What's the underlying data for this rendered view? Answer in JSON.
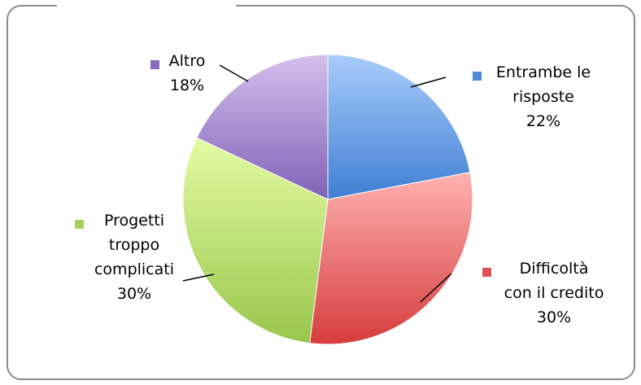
{
  "chart_data": {
    "type": "pie",
    "title": "",
    "slices": [
      {
        "lines": [
          "Entrambe le",
          "risposte"
        ],
        "value": 22,
        "value_label": "22%",
        "color_light": "#a9cdfb",
        "color_dark": "#3f7ed2",
        "marker": "#4f86d6"
      },
      {
        "lines": [
          "Difficoltà",
          "con il credito"
        ],
        "value": 30,
        "value_label": "30%",
        "color_light": "#ffb2b2",
        "color_dark": "#d63c3c",
        "marker": "#e05252"
      },
      {
        "lines": [
          "Progetti",
          "troppo",
          "complicati"
        ],
        "value": 30,
        "value_label": "30%",
        "color_light": "#e4fca4",
        "color_dark": "#98c64c",
        "marker": "#a7d05a"
      },
      {
        "lines": [
          "Altro"
        ],
        "value": 18,
        "value_label": "18%",
        "color_light": "#d4c0ec",
        "color_dark": "#8061b6",
        "marker": "#8a6bbd"
      }
    ]
  }
}
